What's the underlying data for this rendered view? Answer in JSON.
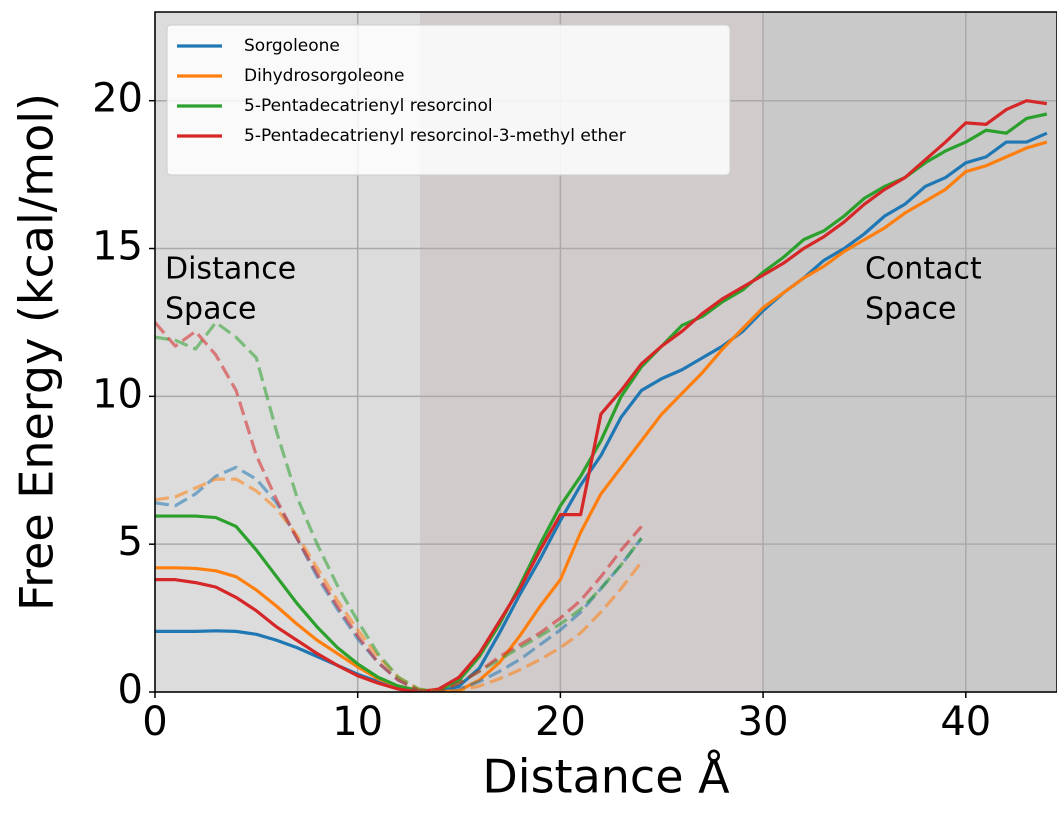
{
  "chart_data": {
    "type": "line",
    "xlabel": "Distance Å",
    "ylabel": "Free Energy (kcal/mol)",
    "annotations": [
      [
        "Distance",
        "Space"
      ],
      [
        "Contact",
        "Space"
      ]
    ],
    "x": [
      0,
      1,
      2,
      3,
      4,
      5,
      6,
      7,
      8,
      9,
      10,
      11,
      12,
      13,
      14,
      15,
      16,
      17,
      18,
      19,
      20,
      21,
      22,
      23,
      24,
      25,
      26,
      27,
      28,
      29,
      30,
      31,
      32,
      33,
      34,
      35,
      36,
      37,
      38,
      39,
      40,
      41,
      42,
      43,
      44
    ],
    "xlim": [
      0,
      44.5
    ],
    "ylim": [
      0,
      23
    ],
    "xticks": [
      0,
      10,
      20,
      30,
      40
    ],
    "yticks": [
      0,
      5,
      10,
      15,
      20
    ],
    "grid": true,
    "legend": "upper left",
    "series": [
      {
        "name": "Sorgoleone",
        "color": "#1f77b4",
        "values": [
          2.05,
          2.05,
          2.05,
          2.07,
          2.05,
          1.95,
          1.75,
          1.5,
          1.2,
          0.9,
          0.6,
          0.35,
          0.15,
          0.02,
          0,
          0.2,
          0.8,
          2.0,
          3.3,
          4.5,
          5.8,
          7.0,
          8.0,
          9.3,
          10.2,
          10.6,
          10.9,
          11.3,
          11.7,
          12.2,
          12.9,
          13.5,
          14.0,
          14.6,
          15.0,
          15.5,
          16.1,
          16.5,
          17.1,
          17.4,
          17.9,
          18.1,
          18.6,
          18.6,
          18.9
        ]
      },
      {
        "name": "Dihydrosorgoleone",
        "color": "#ff7f0e",
        "values": [
          4.2,
          4.2,
          4.18,
          4.1,
          3.9,
          3.45,
          2.9,
          2.3,
          1.75,
          1.3,
          0.85,
          0.45,
          0.2,
          0.05,
          0,
          0.05,
          0.4,
          1.0,
          1.9,
          2.9,
          3.8,
          5.4,
          6.7,
          7.6,
          8.5,
          9.4,
          10.1,
          10.8,
          11.6,
          12.3,
          13.0,
          13.5,
          14.0,
          14.4,
          14.9,
          15.3,
          15.7,
          16.2,
          16.6,
          17.0,
          17.6,
          17.8,
          18.1,
          18.4,
          18.6
        ]
      },
      {
        "name": "5-Pentadecatrienyl resorcinol",
        "color": "#2ca02c",
        "values": [
          5.95,
          5.95,
          5.95,
          5.9,
          5.6,
          4.8,
          3.9,
          3.0,
          2.2,
          1.5,
          0.95,
          0.5,
          0.2,
          0.05,
          0.05,
          0.4,
          1.2,
          2.3,
          3.6,
          5.0,
          6.3,
          7.3,
          8.5,
          10.0,
          11.0,
          11.7,
          12.4,
          12.7,
          13.2,
          13.6,
          14.2,
          14.7,
          15.3,
          15.6,
          16.1,
          16.7,
          17.1,
          17.4,
          17.9,
          18.3,
          18.6,
          19.0,
          18.9,
          19.4,
          19.55
        ]
      },
      {
        "name": "5-Pentadecatrienyl resorcinol-3-methyl ether",
        "color": "#d62728",
        "values": [
          3.8,
          3.8,
          3.7,
          3.55,
          3.2,
          2.75,
          2.2,
          1.75,
          1.3,
          0.9,
          0.55,
          0.3,
          0.1,
          0,
          0.1,
          0.5,
          1.3,
          2.4,
          3.5,
          4.8,
          6.0,
          6.0,
          9.4,
          10.2,
          11.1,
          11.7,
          12.2,
          12.8,
          13.3,
          13.7,
          14.1,
          14.5,
          15.0,
          15.4,
          15.9,
          16.5,
          17.0,
          17.4,
          18.0,
          18.6,
          19.25,
          19.2,
          19.7,
          20.0,
          19.9
        ]
      },
      {
        "color": "#1f77b4",
        "dashed": true,
        "values": [
          6.4,
          6.3,
          6.7,
          7.3,
          7.6,
          7.2,
          6.4,
          5.2,
          3.9,
          2.8,
          1.8,
          1.0,
          0.4,
          0.05,
          0,
          0.1,
          0.35,
          0.7,
          1.1,
          1.6,
          2.1,
          2.7,
          3.5,
          4.3,
          5.2,
          null,
          null,
          null,
          null,
          null,
          null,
          null,
          null,
          null,
          null,
          null,
          null,
          null,
          null,
          null,
          null,
          null,
          null,
          null,
          null
        ]
      },
      {
        "color": "#ff7f0e",
        "dashed": true,
        "values": [
          6.5,
          6.6,
          6.9,
          7.2,
          7.2,
          6.8,
          6.2,
          5.3,
          4.2,
          3.1,
          2.1,
          1.2,
          0.5,
          0.1,
          0,
          0.05,
          0.2,
          0.45,
          0.75,
          1.1,
          1.5,
          2.0,
          2.7,
          3.5,
          4.4,
          null,
          null,
          null,
          null,
          null,
          null,
          null,
          null,
          null,
          null,
          null,
          null,
          null,
          null,
          null,
          null,
          null,
          null,
          null,
          null
        ]
      },
      {
        "color": "#2ca02c",
        "dashed": true,
        "values": [
          12.0,
          11.9,
          11.6,
          12.5,
          12.0,
          11.3,
          8.8,
          6.6,
          5.0,
          3.6,
          2.4,
          1.3,
          0.5,
          0.1,
          0,
          0.3,
          0.7,
          1.1,
          1.5,
          1.9,
          2.3,
          2.8,
          3.5,
          4.3,
          5.2,
          null,
          null,
          null,
          null,
          null,
          null,
          null,
          null,
          null,
          null,
          null,
          null,
          null,
          null,
          null,
          null,
          null,
          null,
          null,
          null
        ]
      },
      {
        "color": "#d62728",
        "dashed": true,
        "values": [
          12.5,
          11.7,
          12.2,
          11.4,
          10.2,
          8.0,
          6.5,
          5.2,
          4.0,
          2.9,
          1.9,
          1.0,
          0.4,
          0.05,
          0,
          0.3,
          0.7,
          1.2,
          1.6,
          2.0,
          2.5,
          3.1,
          3.9,
          4.8,
          5.6,
          null,
          null,
          null,
          null,
          null,
          null,
          null,
          null,
          null,
          null,
          null,
          null,
          null,
          null,
          null,
          null,
          null,
          null,
          null,
          null
        ]
      }
    ]
  }
}
